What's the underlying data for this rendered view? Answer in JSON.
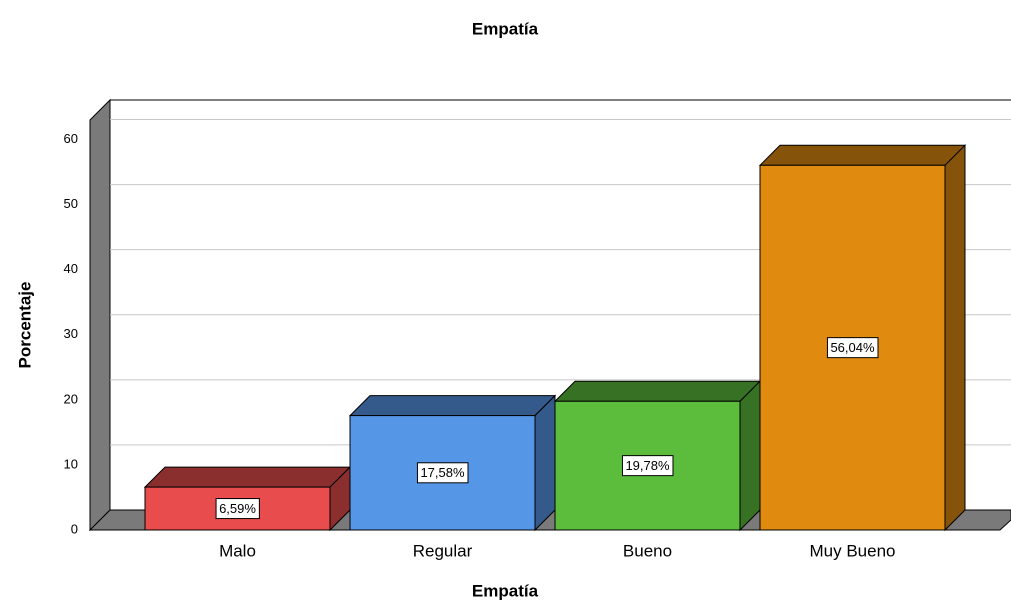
{
  "chart_data": {
    "type": "bar3d",
    "title": "Empatía",
    "x_label": "Empatía",
    "y_label": "Porcentaje",
    "categories": [
      "Malo",
      "Regular",
      "Bueno",
      "Muy Bueno"
    ],
    "values": [
      6.59,
      17.58,
      19.78,
      56.04
    ],
    "value_labels": [
      "6,59%",
      "17,58%",
      "19,78%",
      "56,04%"
    ],
    "colors": [
      "#e84c4c",
      "#5596e6",
      "#5bbd3b",
      "#e08a10"
    ],
    "ylim": [
      0,
      63
    ],
    "yticks": [
      0,
      10,
      20,
      30,
      40,
      50,
      60
    ],
    "grid": true
  }
}
